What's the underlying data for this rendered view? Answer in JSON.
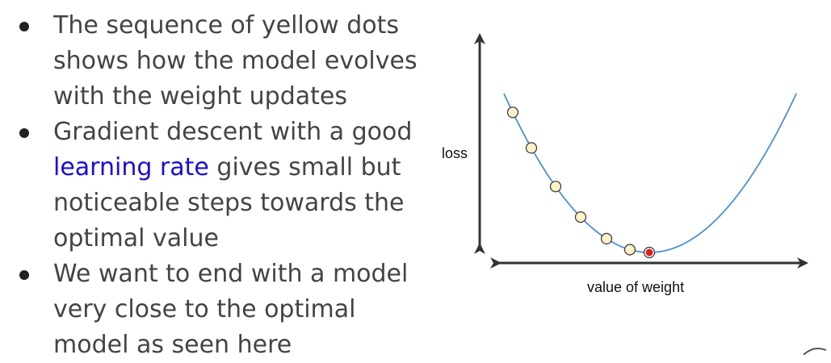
{
  "bullets": [
    {
      "text": "The sequence of yellow dots shows how the model evolves with the weight updates"
    },
    {
      "before": "Gradient descent with a good ",
      "link": "learning rate",
      "after": " gives small but noticeable steps towards the optimal value"
    },
    {
      "text": "We want to end with a model very close to the optimal model as seen here"
    }
  ],
  "diagram": {
    "ylabel": "loss",
    "xlabel": "value of weight",
    "curve_color": "#4a90d9",
    "step_dot_fill": "#fdf1c8",
    "optimum_dot_fill": "#e02020",
    "arrow_color": "#333333",
    "step_count": 7
  },
  "colors": {
    "text": "#444444",
    "link": "#1a0dd6"
  }
}
